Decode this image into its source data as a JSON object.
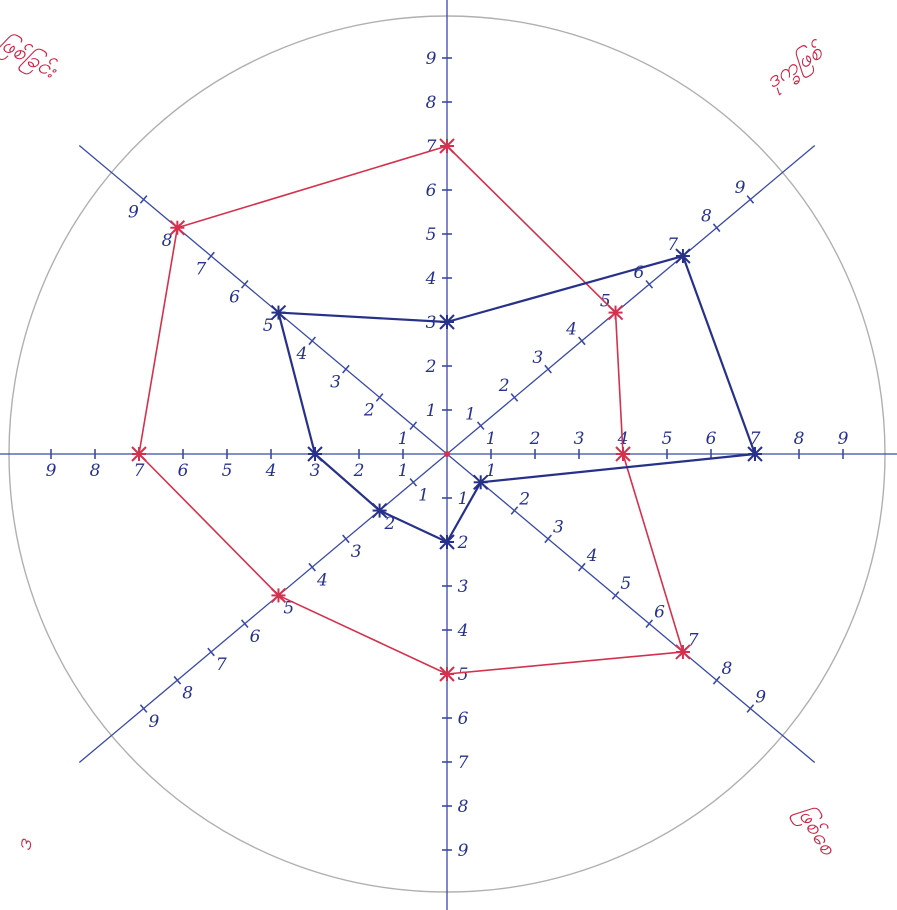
{
  "corner_notes": [
    "ဖြစ်ခြင်း",
    "ဒုက္ခဖြစ်",
    "ဖြစ်စေ",
    "ဒ"
  ],
  "colors": {
    "axis": "#3a4aa6",
    "series_red": "#d4314e",
    "series_blue": "#27318a",
    "circle": "#b0b0b0",
    "label_ink": "#27318a"
  },
  "chart_data": {
    "type": "radar",
    "axes": [
      {
        "angle_deg": 90,
        "ticks": [
          "1",
          "2",
          "3",
          "4",
          "5",
          "6",
          "7",
          "8",
          "9"
        ]
      },
      {
        "angle_deg": 40,
        "ticks": [
          "1",
          "2",
          "3",
          "4",
          "5",
          "6",
          "7",
          "8",
          "9"
        ]
      },
      {
        "angle_deg": 0,
        "ticks": [
          "1",
          "2",
          "3",
          "4",
          "5",
          "6",
          "7",
          "8",
          "9"
        ]
      },
      {
        "angle_deg": -40,
        "ticks": [
          "1",
          "2",
          "3",
          "4",
          "5",
          "6",
          "7",
          "8",
          "9"
        ]
      },
      {
        "angle_deg": -90,
        "ticks": [
          "1",
          "2",
          "3",
          "4",
          "5",
          "6",
          "7",
          "8",
          "9"
        ]
      },
      {
        "angle_deg": -140,
        "ticks": [
          "1",
          "2",
          "3",
          "4",
          "5",
          "6",
          "7",
          "8",
          "9"
        ]
      },
      {
        "angle_deg": 180,
        "ticks": [
          "1",
          "2",
          "3",
          "4",
          "5",
          "6",
          "7",
          "8",
          "9"
        ]
      },
      {
        "angle_deg": 140,
        "ticks": [
          "1",
          "2",
          "3",
          "4",
          "5",
          "6",
          "7",
          "8",
          "9"
        ]
      }
    ],
    "range": [
      0,
      9
    ],
    "series": [
      {
        "color": "red",
        "values": [
          7,
          5,
          4,
          7,
          5,
          5,
          7,
          8
        ]
      },
      {
        "color": "blue",
        "values": [
          3,
          7,
          7,
          1,
          2,
          2,
          3,
          5
        ]
      }
    ]
  }
}
